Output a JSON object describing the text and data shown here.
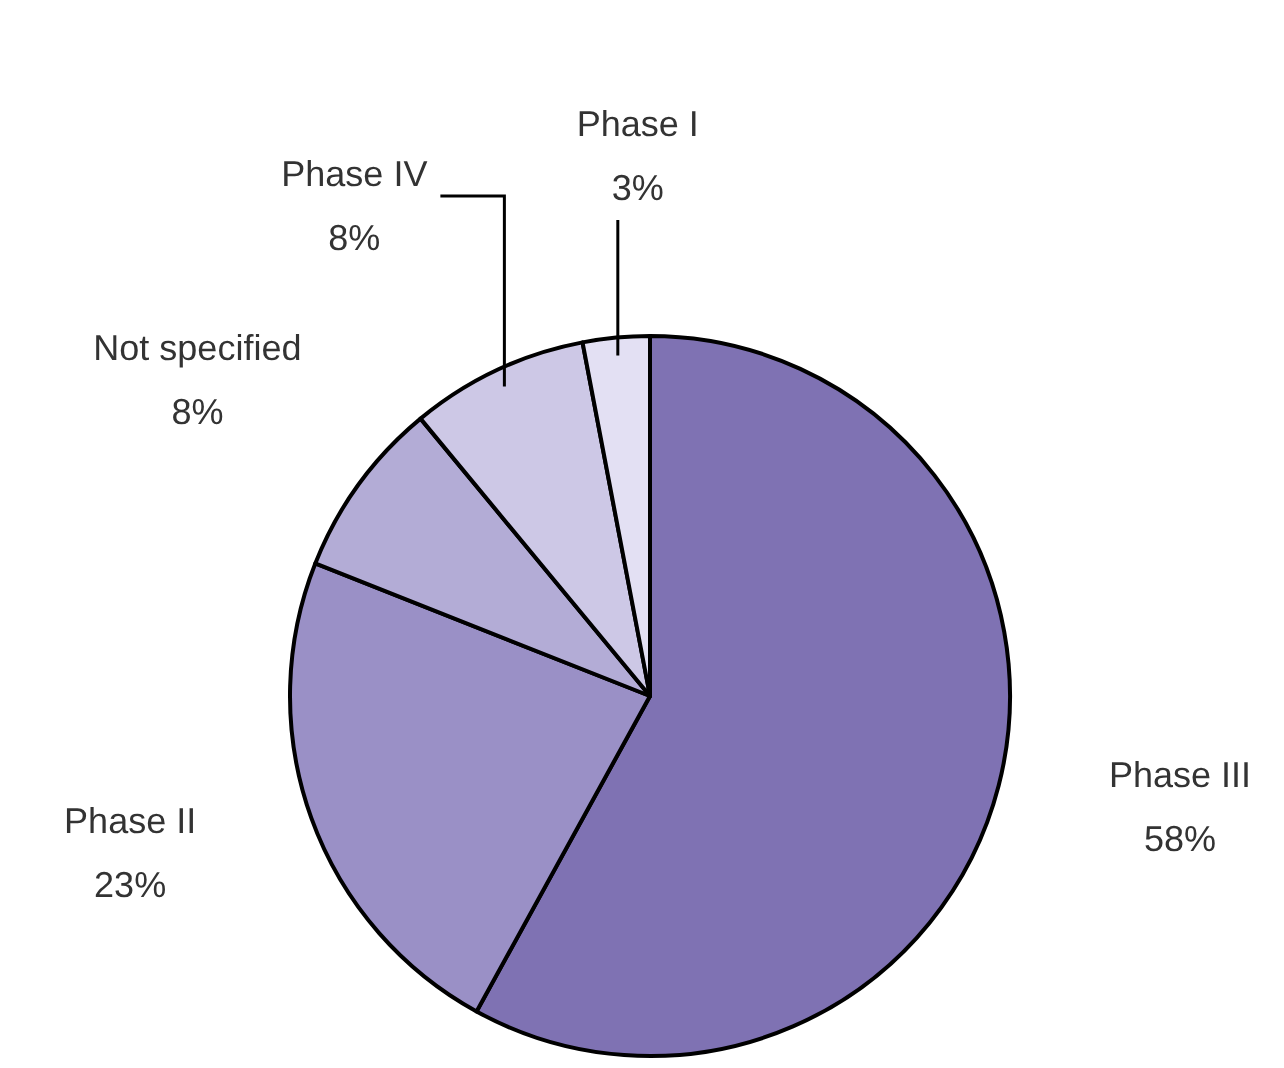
{
  "chart_data": {
    "type": "pie",
    "categories": [
      "Phase III",
      "Phase II",
      "Not specified",
      "Phase IV",
      "Phase I"
    ],
    "values": [
      58,
      23,
      8,
      8,
      3
    ],
    "colors": [
      "#7f72b3",
      "#9a90c6",
      "#b3acd6",
      "#cdc8e6",
      "#e3e0f3"
    ],
    "value_labels": [
      "58%",
      "23%",
      "8%",
      "8%",
      "3%"
    ]
  }
}
